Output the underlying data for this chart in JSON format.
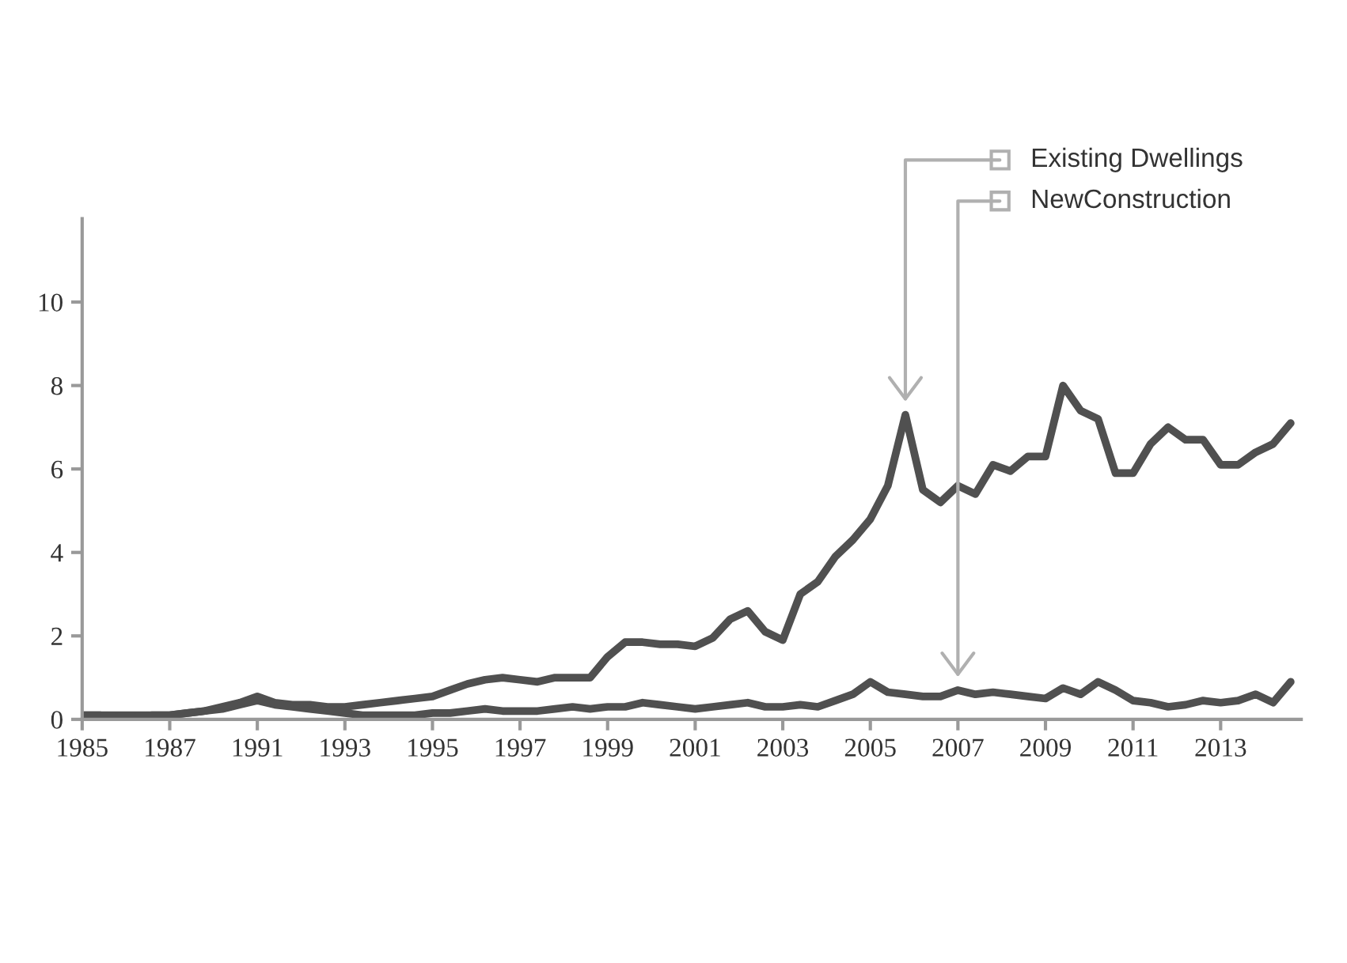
{
  "chart_data": {
    "type": "line",
    "categories": [
      "1985",
      null,
      null,
      null,
      null,
      "1987",
      null,
      null,
      null,
      null,
      "1991",
      null,
      null,
      null,
      null,
      "1993",
      null,
      null,
      null,
      null,
      "1995",
      null,
      null,
      null,
      null,
      "1997",
      null,
      null,
      null,
      null,
      "1999",
      null,
      null,
      null,
      null,
      "2001",
      null,
      null,
      null,
      null,
      "2003",
      null,
      null,
      null,
      null,
      "2005",
      null,
      null,
      null,
      null,
      "2007",
      null,
      null,
      null,
      null,
      "2009",
      null,
      null,
      null,
      null,
      "2011",
      null,
      null,
      null,
      null,
      "2013",
      null,
      null,
      null,
      null
    ],
    "series": [
      {
        "name": "Existing Dwellings",
        "color": "#505050",
        "values": [
          0.1,
          0.1,
          0.1,
          0.1,
          0.1,
          0.1,
          0.15,
          0.2,
          0.3,
          0.4,
          0.55,
          0.4,
          0.35,
          0.35,
          0.3,
          0.3,
          0.35,
          0.4,
          0.45,
          0.5,
          0.55,
          0.7,
          0.85,
          0.95,
          1.0,
          0.95,
          0.9,
          1.0,
          1.0,
          1.0,
          1.5,
          1.85,
          1.85,
          1.8,
          1.8,
          1.75,
          1.95,
          2.4,
          2.6,
          2.1,
          1.9,
          3.0,
          3.3,
          3.9,
          4.3,
          4.8,
          5.6,
          7.3,
          5.5,
          5.2,
          5.6,
          5.4,
          6.1,
          5.95,
          6.3,
          6.3,
          8.0,
          7.4,
          7.2,
          5.9,
          5.9,
          6.6,
          7.0,
          6.7,
          6.7,
          6.1,
          6.1,
          6.4,
          6.6,
          7.1
        ]
      },
      {
        "name": "NewConstruction",
        "color": "#505050",
        "values": [
          0.1,
          0.1,
          0.05,
          0.05,
          0.1,
          0.1,
          0.15,
          0.2,
          0.25,
          0.35,
          0.45,
          0.35,
          0.3,
          0.25,
          0.2,
          0.15,
          0.1,
          0.1,
          0.1,
          0.1,
          0.15,
          0.15,
          0.2,
          0.25,
          0.2,
          0.2,
          0.2,
          0.25,
          0.3,
          0.25,
          0.3,
          0.3,
          0.4,
          0.35,
          0.3,
          0.25,
          0.3,
          0.35,
          0.4,
          0.3,
          0.3,
          0.35,
          0.3,
          0.45,
          0.6,
          0.9,
          0.65,
          0.6,
          0.55,
          0.55,
          0.7,
          0.6,
          0.65,
          0.6,
          0.55,
          0.5,
          0.75,
          0.6,
          0.9,
          0.7,
          0.45,
          0.4,
          0.3,
          0.35,
          0.45,
          0.4,
          0.45,
          0.6,
          0.4,
          0.9
        ]
      }
    ],
    "ylim": [
      0,
      12
    ],
    "yticks": [
      0,
      2,
      4,
      6,
      8,
      10
    ],
    "grid": false,
    "legend": false,
    "marker": "none",
    "line_style": "solid"
  }
}
